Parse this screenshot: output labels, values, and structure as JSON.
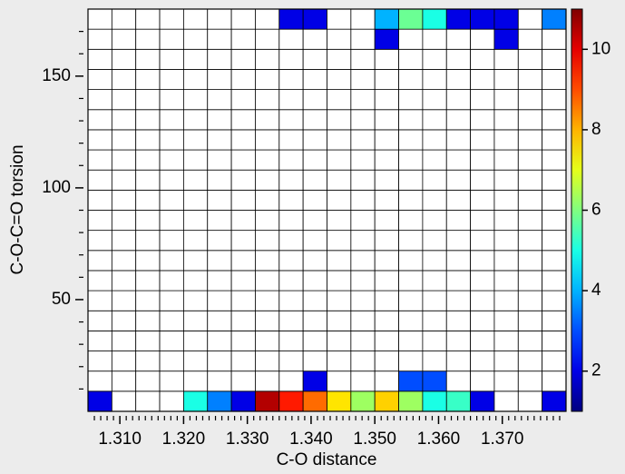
{
  "chart_data": {
    "type": "heatmap",
    "xlabel": "C-O distance",
    "ylabel": "C-O-C=O torsion",
    "colormap": "jet",
    "grid": true,
    "x": [
      1.306875,
      1.310625,
      1.314375,
      1.318125,
      1.321875,
      1.325625,
      1.329375,
      1.333125,
      1.336875,
      1.340625,
      1.344375,
      1.348125,
      1.351875,
      1.355625,
      1.359375,
      1.363125,
      1.366875,
      1.370625,
      1.374375,
      1.378125
    ],
    "y": [
      4.5,
      13.5,
      22.5,
      31.5,
      40.5,
      49.5,
      58.5,
      67.5,
      76.5,
      85.5,
      94.5,
      103.5,
      112.5,
      121.5,
      130.5,
      139.5,
      148.5,
      157.5,
      166.5,
      175.5
    ],
    "z": [
      [
        2,
        null,
        null,
        null,
        5,
        3.5,
        2,
        10.5,
        9.5,
        8.7,
        7.5,
        6.3,
        7.7,
        6.3,
        5,
        5.3,
        2,
        null,
        null,
        2
      ],
      [
        null,
        null,
        null,
        null,
        null,
        null,
        null,
        null,
        null,
        2,
        null,
        null,
        null,
        3,
        3,
        null,
        null,
        null,
        null,
        null
      ],
      [
        null,
        null,
        null,
        null,
        null,
        null,
        null,
        null,
        null,
        null,
        null,
        null,
        null,
        null,
        null,
        null,
        null,
        null,
        null,
        null
      ],
      [
        null,
        null,
        null,
        null,
        null,
        null,
        null,
        null,
        null,
        null,
        null,
        null,
        null,
        null,
        null,
        null,
        null,
        null,
        null,
        null
      ],
      [
        null,
        null,
        null,
        null,
        null,
        null,
        null,
        null,
        null,
        null,
        null,
        null,
        null,
        null,
        null,
        null,
        null,
        null,
        null,
        null
      ],
      [
        null,
        null,
        null,
        null,
        null,
        null,
        null,
        null,
        null,
        null,
        null,
        null,
        null,
        null,
        null,
        null,
        null,
        null,
        null,
        null
      ],
      [
        null,
        null,
        null,
        null,
        null,
        null,
        null,
        null,
        null,
        null,
        null,
        null,
        null,
        null,
        null,
        null,
        null,
        null,
        null,
        null
      ],
      [
        null,
        null,
        null,
        null,
        null,
        null,
        null,
        null,
        null,
        null,
        null,
        null,
        null,
        null,
        null,
        null,
        null,
        null,
        null,
        null
      ],
      [
        null,
        null,
        null,
        null,
        null,
        null,
        null,
        null,
        null,
        null,
        null,
        null,
        null,
        null,
        null,
        null,
        null,
        null,
        null,
        null
      ],
      [
        null,
        null,
        null,
        null,
        null,
        null,
        null,
        null,
        null,
        null,
        null,
        null,
        null,
        null,
        null,
        null,
        null,
        null,
        null,
        null
      ],
      [
        null,
        null,
        null,
        null,
        null,
        null,
        null,
        null,
        null,
        null,
        null,
        null,
        null,
        null,
        null,
        null,
        null,
        null,
        null,
        null
      ],
      [
        null,
        null,
        null,
        null,
        null,
        null,
        null,
        null,
        null,
        null,
        null,
        null,
        null,
        null,
        null,
        null,
        null,
        null,
        null,
        null
      ],
      [
        null,
        null,
        null,
        null,
        null,
        null,
        null,
        null,
        null,
        null,
        null,
        null,
        null,
        null,
        null,
        null,
        null,
        null,
        null,
        null
      ],
      [
        null,
        null,
        null,
        null,
        null,
        null,
        null,
        null,
        null,
        null,
        null,
        null,
        null,
        null,
        null,
        null,
        null,
        null,
        null,
        null
      ],
      [
        null,
        null,
        null,
        null,
        null,
        null,
        null,
        null,
        null,
        null,
        null,
        null,
        null,
        null,
        null,
        null,
        null,
        null,
        null,
        null
      ],
      [
        null,
        null,
        null,
        null,
        null,
        null,
        null,
        null,
        null,
        null,
        null,
        null,
        null,
        null,
        null,
        null,
        null,
        null,
        null,
        null
      ],
      [
        null,
        null,
        null,
        null,
        null,
        null,
        null,
        null,
        null,
        null,
        null,
        null,
        null,
        null,
        null,
        null,
        null,
        null,
        null,
        null
      ],
      [
        null,
        null,
        null,
        null,
        null,
        null,
        null,
        null,
        null,
        null,
        null,
        null,
        null,
        null,
        null,
        null,
        null,
        null,
        null,
        null
      ],
      [
        null,
        null,
        null,
        null,
        null,
        null,
        null,
        null,
        null,
        null,
        null,
        null,
        2,
        null,
        null,
        null,
        null,
        2,
        null,
        null
      ],
      [
        null,
        null,
        null,
        null,
        null,
        null,
        null,
        null,
        2,
        2,
        null,
        null,
        4,
        5.8,
        5,
        2,
        2,
        2,
        null,
        3.5
      ]
    ],
    "xlim": [
      1.305,
      1.38
    ],
    "ylim": [
      0,
      180
    ],
    "xticks": [
      {
        "value": 1.31,
        "label": "1.310"
      },
      {
        "value": 1.32,
        "label": "1.320"
      },
      {
        "value": 1.33,
        "label": "1.330"
      },
      {
        "value": 1.34,
        "label": "1.340"
      },
      {
        "value": 1.35,
        "label": "1.350"
      },
      {
        "value": 1.36,
        "label": "1.360"
      },
      {
        "value": 1.37,
        "label": "1.370"
      }
    ],
    "xminorticks": [
      1.306,
      1.307,
      1.308,
      1.309,
      1.311,
      1.312,
      1.313,
      1.314,
      1.315,
      1.316,
      1.317,
      1.318,
      1.319,
      1.321,
      1.322,
      1.323,
      1.324,
      1.325,
      1.326,
      1.327,
      1.328,
      1.329,
      1.331,
      1.332,
      1.333,
      1.334,
      1.335,
      1.336,
      1.337,
      1.338,
      1.339,
      1.341,
      1.342,
      1.343,
      1.344,
      1.345,
      1.346,
      1.347,
      1.348,
      1.349,
      1.351,
      1.352,
      1.353,
      1.354,
      1.355,
      1.356,
      1.357,
      1.358,
      1.359,
      1.361,
      1.362,
      1.363,
      1.364,
      1.365,
      1.366,
      1.367,
      1.368,
      1.369,
      1.371,
      1.372,
      1.373,
      1.374,
      1.375,
      1.376,
      1.377,
      1.378,
      1.379
    ],
    "yticks": [
      50,
      100,
      150
    ],
    "yminorticks": [
      10,
      20,
      30,
      40,
      60,
      70,
      80,
      90,
      110,
      120,
      130,
      140,
      160,
      170
    ],
    "colorbar": {
      "lim": [
        1,
        11
      ],
      "ticks": [
        2,
        4,
        6,
        8,
        10
      ]
    }
  }
}
